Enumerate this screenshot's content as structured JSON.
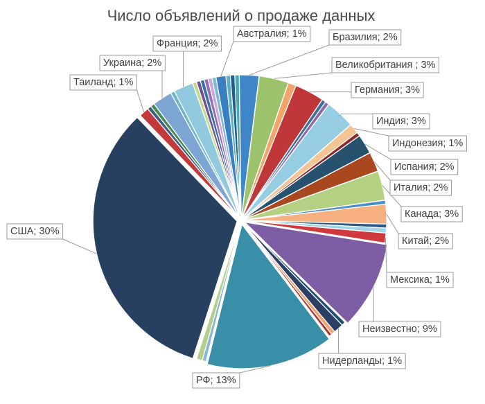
{
  "chart_data": {
    "type": "pie",
    "title": "Число объявлений о продаже данных",
    "slices": [
      {
        "label": "Австралия; 1%",
        "value": 1.0,
        "color": "#3a7fc1"
      },
      {
        "label": "",
        "value": 0.45,
        "color": "#5aafc4"
      },
      {
        "label": "",
        "value": 0.45,
        "color": "#1f5f8c"
      },
      {
        "label": "",
        "value": 0.45,
        "color": "#4aa8b8"
      },
      {
        "label": "Бразилия; 2%",
        "value": 2.0,
        "color": "#3f86c8"
      },
      {
        "label": "Великобритания ; 3%",
        "value": 3.0,
        "color": "#9cc36b"
      },
      {
        "label": "",
        "value": 0.8,
        "color": "#f2a46a"
      },
      {
        "label": "Германия; 3%",
        "value": 3.0,
        "color": "#c0373a"
      },
      {
        "label": "",
        "value": 0.4,
        "color": "#3f6f9c"
      },
      {
        "label": "",
        "value": 0.4,
        "color": "#8a6aa8"
      },
      {
        "label": "Индия; 3%",
        "value": 3.0,
        "color": "#97cde3"
      },
      {
        "label": "Индонезия; 1%",
        "value": 1.0,
        "color": "#f5c493"
      },
      {
        "label": "",
        "value": 0.4,
        "color": "#8a2a2a"
      },
      {
        "label": "Испания; 2%",
        "value": 2.0,
        "color": "#26526e"
      },
      {
        "label": "Италия; 2%",
        "value": 2.0,
        "color": "#a9471e"
      },
      {
        "label": "Канада; 3%",
        "value": 3.0,
        "color": "#b4d183"
      },
      {
        "label": "",
        "value": 0.4,
        "color": "#4a8ec9"
      },
      {
        "label": "Китай; 2%",
        "value": 2.0,
        "color": "#f7b07f"
      },
      {
        "label": "",
        "value": 0.4,
        "color": "#2a5a8a"
      },
      {
        "label": "",
        "value": 0.5,
        "color": "#9fd3e8"
      },
      {
        "label": "Мексика; 1%",
        "value": 1.0,
        "color": "#d0393d"
      },
      {
        "label": "Неизвестно; 9%",
        "value": 9.0,
        "color": "#7d5ea5"
      },
      {
        "label": "",
        "value": 0.4,
        "color": "#1e4e78"
      },
      {
        "label": "Нидерланды; 1%",
        "value": 1.0,
        "color": "#2a3f63"
      },
      {
        "label": "",
        "value": 0.4,
        "color": "#f0a36b"
      },
      {
        "label": "",
        "value": 0.3,
        "color": "#b03535"
      },
      {
        "label": "РФ; 13%",
        "value": 13.0,
        "color": "#3a8fa8"
      },
      {
        "label": "",
        "value": 0.4,
        "color": "#8db4d9"
      },
      {
        "label": "",
        "value": 0.6,
        "color": "#b3cf8c"
      },
      {
        "label": "США; 30%",
        "value": 30.0,
        "color": "#27405f"
      },
      {
        "label": "Таиланд; 1%",
        "value": 1.0,
        "color": "#c33a3a"
      },
      {
        "label": "",
        "value": 0.4,
        "color": "#3d5f82"
      },
      {
        "label": "",
        "value": 0.4,
        "color": "#4a8a55"
      },
      {
        "label": "Украина; 2%",
        "value": 2.0,
        "color": "#7ea6d4"
      },
      {
        "label": "",
        "value": 0.4,
        "color": "#6fb6c9"
      },
      {
        "label": "Франция; 2%",
        "value": 2.0,
        "color": "#91c9df"
      },
      {
        "label": "",
        "value": 0.4,
        "color": "#c8d88a"
      },
      {
        "label": "",
        "value": 0.4,
        "color": "#6d4f9a"
      },
      {
        "label": "",
        "value": 0.4,
        "color": "#3b6fa8"
      },
      {
        "label": "",
        "value": 0.4,
        "color": "#9a6db3"
      },
      {
        "label": "",
        "value": 0.4,
        "color": "#c9a9dd"
      },
      {
        "label": "",
        "value": 0.4,
        "color": "#7cb8d8"
      }
    ]
  }
}
